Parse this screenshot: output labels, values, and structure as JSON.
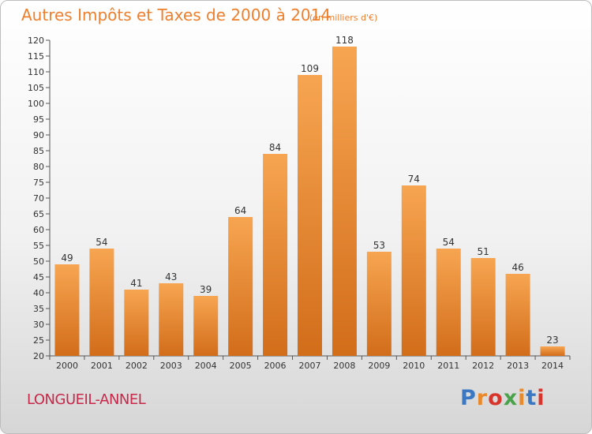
{
  "header": {
    "title": "Autres Impôts et Taxes de 2000 à 2014",
    "unit_note": "(en milliers d'€)"
  },
  "footer": {
    "commune": "LONGUEIL-ANNEL",
    "brand": "Proxiti",
    "brand_colors": [
      "#3a78c3",
      "#e8892b",
      "#d9342b",
      "#4aa34b",
      "#e8892b",
      "#3a78c3",
      "#d9342b"
    ]
  },
  "colors": {
    "bar_light": "#f7a551",
    "bar_dark": "#d26d1a",
    "title": "#ee7f2d",
    "commune": "#c8284a",
    "axis": "#555555"
  },
  "chart_data": {
    "type": "bar",
    "categories": [
      "2000",
      "2001",
      "2002",
      "2003",
      "2004",
      "2005",
      "2006",
      "2007",
      "2008",
      "2009",
      "2010",
      "2011",
      "2012",
      "2013",
      "2014"
    ],
    "values": [
      49,
      54,
      41,
      43,
      39,
      64,
      84,
      109,
      118,
      53,
      74,
      54,
      51,
      46,
      23
    ],
    "ylim": [
      20,
      120
    ],
    "yticks": [
      20,
      25,
      30,
      35,
      40,
      45,
      50,
      55,
      60,
      65,
      70,
      75,
      80,
      85,
      90,
      95,
      100,
      105,
      110,
      115,
      120
    ],
    "grid": false,
    "title": "Autres Impôts et Taxes de 2000 à 2014",
    "xlabel": "",
    "ylabel": ""
  }
}
